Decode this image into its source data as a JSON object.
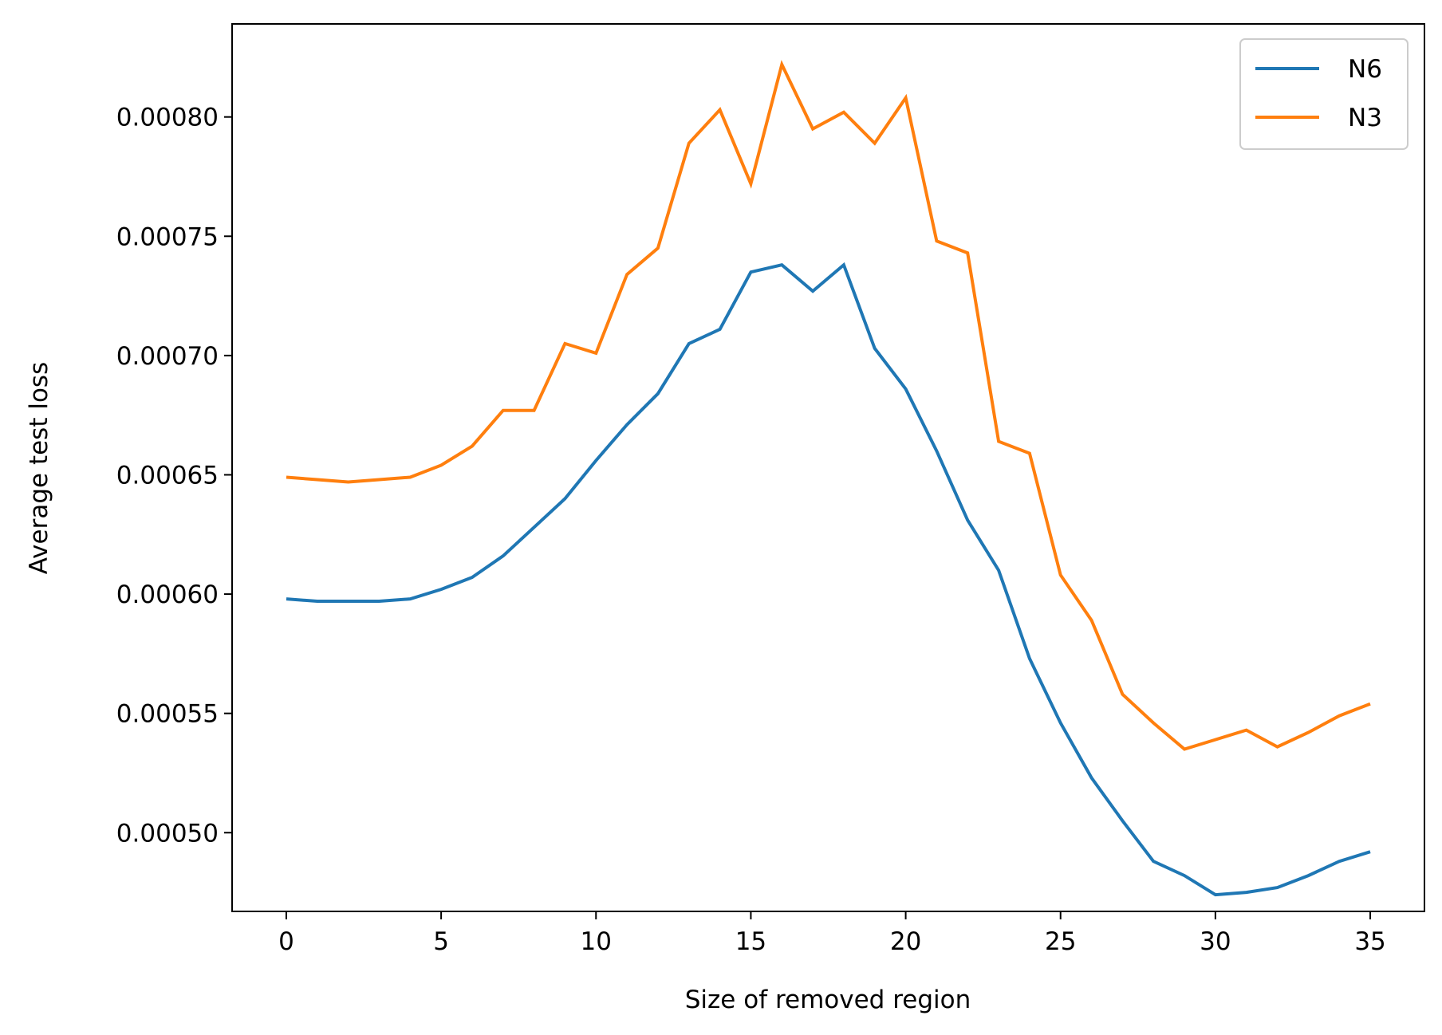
{
  "chart_data": {
    "type": "line",
    "xlabel": "Size of removed region",
    "ylabel": "Average test loss",
    "xlim": [
      -1.75,
      36.75
    ],
    "ylim": [
      0.000467,
      0.000839
    ],
    "xticks": [
      0,
      5,
      10,
      15,
      20,
      25,
      30,
      35
    ],
    "xtick_labels": [
      "0",
      "5",
      "10",
      "15",
      "20",
      "25",
      "30",
      "35"
    ],
    "yticks": [
      0.0005,
      0.00055,
      0.0006,
      0.00065,
      0.0007,
      0.00075,
      0.0008
    ],
    "ytick_labels": [
      "0.00050",
      "0.00055",
      "0.00060",
      "0.00065",
      "0.00070",
      "0.00075",
      "0.00080"
    ],
    "grid": false,
    "legend_position": "top-right",
    "x": [
      0,
      1,
      2,
      3,
      4,
      5,
      6,
      7,
      8,
      9,
      10,
      11,
      12,
      13,
      14,
      15,
      16,
      17,
      18,
      19,
      20,
      21,
      22,
      23,
      24,
      25,
      26,
      27,
      28,
      29,
      30,
      31,
      32,
      33,
      34,
      35
    ],
    "series": [
      {
        "name": "N6",
        "color": "#1f77b4",
        "values": [
          0.000598,
          0.000597,
          0.000597,
          0.000597,
          0.000598,
          0.000602,
          0.000607,
          0.000616,
          0.000628,
          0.00064,
          0.000656,
          0.000671,
          0.000684,
          0.000705,
          0.000711,
          0.000735,
          0.000738,
          0.000727,
          0.000738,
          0.000703,
          0.000686,
          0.00066,
          0.000631,
          0.00061,
          0.000573,
          0.000546,
          0.000523,
          0.000505,
          0.000488,
          0.000482,
          0.000474,
          0.000475,
          0.000477,
          0.000482,
          0.000488,
          0.000492
        ]
      },
      {
        "name": "N3",
        "color": "#ff7f0e",
        "values": [
          0.000649,
          0.000648,
          0.000647,
          0.000648,
          0.000649,
          0.000654,
          0.000662,
          0.000677,
          0.000677,
          0.000705,
          0.000701,
          0.000734,
          0.000745,
          0.000789,
          0.000803,
          0.000772,
          0.000822,
          0.000795,
          0.000802,
          0.000789,
          0.000808,
          0.000748,
          0.000743,
          0.000664,
          0.000659,
          0.000608,
          0.000589,
          0.000558,
          0.000546,
          0.000535,
          0.000539,
          0.000543,
          0.000536,
          0.000542,
          0.000549,
          0.000554
        ]
      }
    ]
  }
}
